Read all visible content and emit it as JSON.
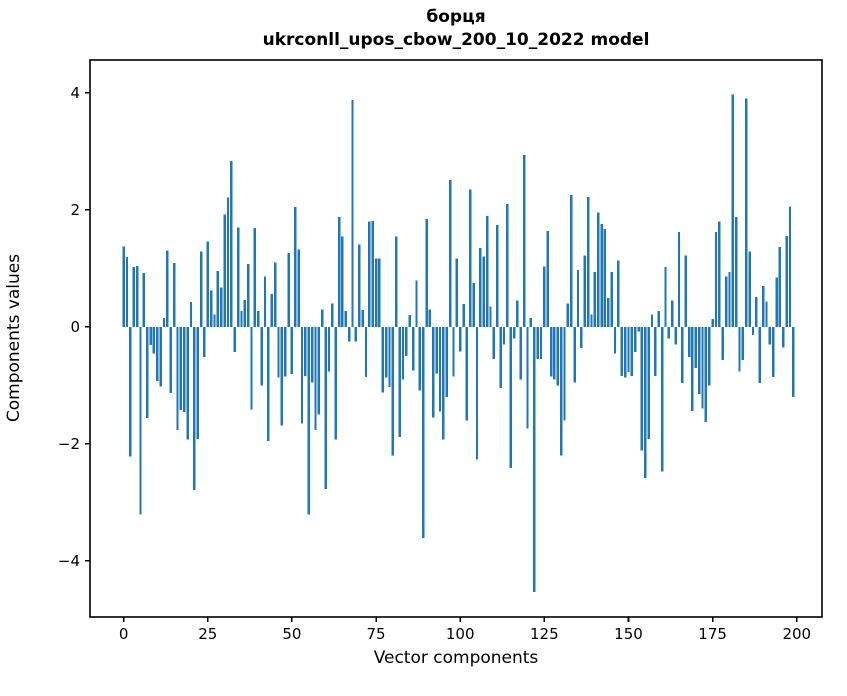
{
  "figure": {
    "title_line1": "борця",
    "title_line2": "ukrconll_upos_cbow_200_10_2022 model"
  },
  "chart_data": {
    "type": "bar",
    "title": "борця — ukrconll_upos_cbow_200_10_2022 model",
    "xlabel": "Vector components",
    "ylabel": "Components values",
    "legend": "none",
    "grid": false,
    "bar_color": "#1f77b4",
    "xlim": [
      -10,
      207.5
    ],
    "ylim": [
      -4.96,
      4.56
    ],
    "x_tick_values": [
      0,
      25,
      50,
      75,
      100,
      125,
      150,
      175,
      200
    ],
    "x_tick_labels": [
      "0",
      "25",
      "50",
      "75",
      "100",
      "125",
      "150",
      "175",
      "200"
    ],
    "y_tick_values": [
      4,
      2,
      0,
      -2,
      -4
    ],
    "y_tick_labels": [
      "4",
      "2",
      "0",
      "−2",
      "−4"
    ],
    "x_start": 0,
    "values": [
      1.37,
      1.19,
      -2.22,
      1.02,
      1.04,
      -3.21,
      0.92,
      -1.56,
      -0.31,
      -0.46,
      -0.93,
      -1.02,
      0.15,
      1.3,
      -1.13,
      1.09,
      -1.76,
      -1.42,
      -1.46,
      -1.93,
      0.42,
      -2.79,
      -1.92,
      1.29,
      -0.52,
      1.46,
      0.62,
      0.21,
      0.95,
      0.67,
      1.92,
      2.21,
      2.83,
      -0.43,
      1.7,
      0.27,
      0.46,
      1.07,
      -1.41,
      1.69,
      0.27,
      -1.0,
      0.86,
      -1.95,
      0.56,
      1.1,
      -0.87,
      -1.69,
      -0.85,
      1.26,
      -0.81,
      2.05,
      1.32,
      -1.65,
      -0.84,
      -3.21,
      -0.95,
      -1.76,
      -1.5,
      0.3,
      -2.77,
      -0.76,
      0.4,
      -1.93,
      1.88,
      1.54,
      0.27,
      -0.25,
      3.88,
      -0.25,
      1.41,
      0.29,
      -0.86,
      1.8,
      1.81,
      1.17,
      1.17,
      -1.12,
      -0.87,
      -1.03,
      -2.2,
      1.54,
      -1.88,
      -0.9,
      -0.5,
      0.2,
      -0.75,
      0.79,
      -1.09,
      -3.61,
      1.84,
      0.3,
      -1.55,
      -0.8,
      -1.45,
      -1.93,
      -1.2,
      2.51,
      -0.85,
      1.17,
      -0.42,
      0.39,
      -1.6,
      2.35,
      0.75,
      -2.27,
      1.35,
      1.2,
      1.89,
      0.35,
      -0.55,
      1.74,
      -1.05,
      -0.3,
      2.1,
      -2.41,
      -0.2,
      0.45,
      -0.9,
      2.94,
      -1.74,
      0.15,
      -4.53,
      -0.55,
      -0.55,
      1.03,
      1.64,
      -0.85,
      -0.9,
      -1.0,
      -2.2,
      -1.6,
      0.4,
      2.25,
      -0.95,
      0.97,
      -0.36,
      1.22,
      2.22,
      0.21,
      0.94,
      1.95,
      1.76,
      1.67,
      0.49,
      0.94,
      -0.46,
      1.13,
      -0.84,
      -0.87,
      -0.77,
      -0.84,
      -0.43,
      -0.08,
      -2.11,
      -2.58,
      -1.92,
      0.21,
      -0.84,
      0.27,
      -2.47,
      1.02,
      -0.2,
      0.45,
      -0.3,
      1.62,
      -0.96,
      1.22,
      -0.52,
      -1.44,
      -0.7,
      -1.15,
      -1.4,
      -1.63,
      -1.0,
      0.13,
      1.62,
      1.8,
      -0.57,
      0.86,
      0.94,
      3.97,
      1.88,
      -0.76,
      -0.57,
      3.9,
      1.29,
      -0.14,
      0.51,
      -0.96,
      0.7,
      0.43,
      -0.3,
      -0.86,
      0.84,
      1.36,
      -0.35,
      1.55,
      2.06,
      -1.2
    ]
  }
}
